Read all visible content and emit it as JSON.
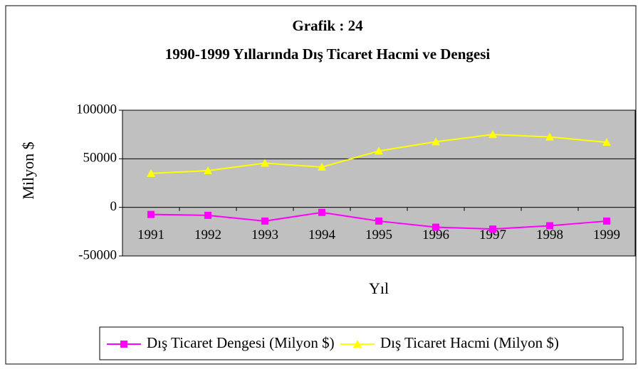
{
  "chart_data": {
    "type": "line",
    "title": "Grafik : 24",
    "subtitle": "1990-1999 Yıllarında Dış Ticaret Hacmi ve Dengesi",
    "x_label": "Yıl",
    "y_label": "Milyon $",
    "categories": [
      "1991",
      "1992",
      "1993",
      "1994",
      "1995",
      "1996",
      "1997",
      "1998",
      "1999"
    ],
    "series": [
      {
        "name": "Dış Ticaret Dengesi (Milyon $)",
        "color": "#ff00ff",
        "marker": "square",
        "values": [
          -7300,
          -8200,
          -14100,
          -5200,
          -14100,
          -20400,
          -22300,
          -18900,
          -14100
        ]
      },
      {
        "name": "Dış Ticaret Hacmi (Milyon $)",
        "color": "#ffff00",
        "marker": "triangle",
        "values": [
          35000,
          37800,
          45500,
          41500,
          58000,
          67500,
          75000,
          72500,
          67000
        ]
      }
    ],
    "ylim": [
      -50000,
      100000
    ],
    "yticks": [
      -50000,
      0,
      50000,
      100000
    ],
    "grid": true,
    "legend": "bottom"
  }
}
